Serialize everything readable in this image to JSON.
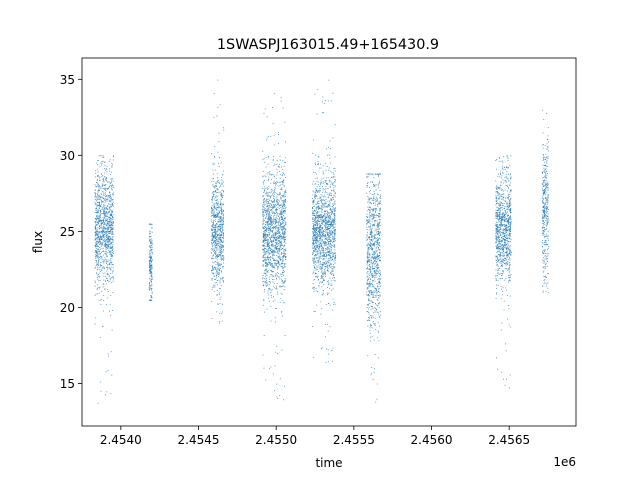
{
  "chart_data": {
    "type": "scatter",
    "title": "1SWASPJ163015.49+165430.9",
    "xlabel": "time",
    "ylabel": "flux",
    "x_offset_label": "1e6",
    "xlim": [
      2.45375,
      2.45693
    ],
    "ylim": [
      12.2,
      36.4
    ],
    "x_ticks": [
      2.454,
      2.4545,
      2.455,
      2.4555,
      2.456,
      2.4565
    ],
    "x_tick_labels": [
      "2.4540",
      "2.4545",
      "2.4550",
      "2.4555",
      "2.4560",
      "2.4565"
    ],
    "y_ticks": [
      15,
      20,
      25,
      30,
      35
    ],
    "y_tick_labels": [
      "15",
      "20",
      "25",
      "30",
      "35"
    ],
    "grid": false,
    "point_color": "#1f77b4",
    "clusters": [
      {
        "x_min": 2.45383,
        "x_max": 2.45395,
        "y_mean": 25.2,
        "y_spread": 1.9,
        "y_min": 13.3,
        "y_max": 30.0
      },
      {
        "x_min": 2.45418,
        "x_max": 2.4542,
        "y_mean": 22.8,
        "y_spread": 1.4,
        "y_min": 20.5,
        "y_max": 25.5
      },
      {
        "x_min": 2.45458,
        "x_max": 2.45466,
        "y_mean": 25.0,
        "y_spread": 1.8,
        "y_min": 19.0,
        "y_max": 35.0
      },
      {
        "x_min": 2.45491,
        "x_max": 2.45506,
        "y_mean": 25.0,
        "y_spread": 1.9,
        "y_min": 13.7,
        "y_max": 34.2
      },
      {
        "x_min": 2.45523,
        "x_max": 2.45538,
        "y_mean": 25.0,
        "y_spread": 1.8,
        "y_min": 16.3,
        "y_max": 35.3
      },
      {
        "x_min": 2.45558,
        "x_max": 2.45567,
        "y_mean": 23.8,
        "y_spread": 2.5,
        "y_min": 13.5,
        "y_max": 28.8
      },
      {
        "x_min": 2.45641,
        "x_max": 2.45651,
        "y_mean": 25.2,
        "y_spread": 1.8,
        "y_min": 14.5,
        "y_max": 30.0
      },
      {
        "x_min": 2.45671,
        "x_max": 2.45675,
        "y_mean": 26.3,
        "y_spread": 2.4,
        "y_min": 21.0,
        "y_max": 33.0
      }
    ]
  }
}
